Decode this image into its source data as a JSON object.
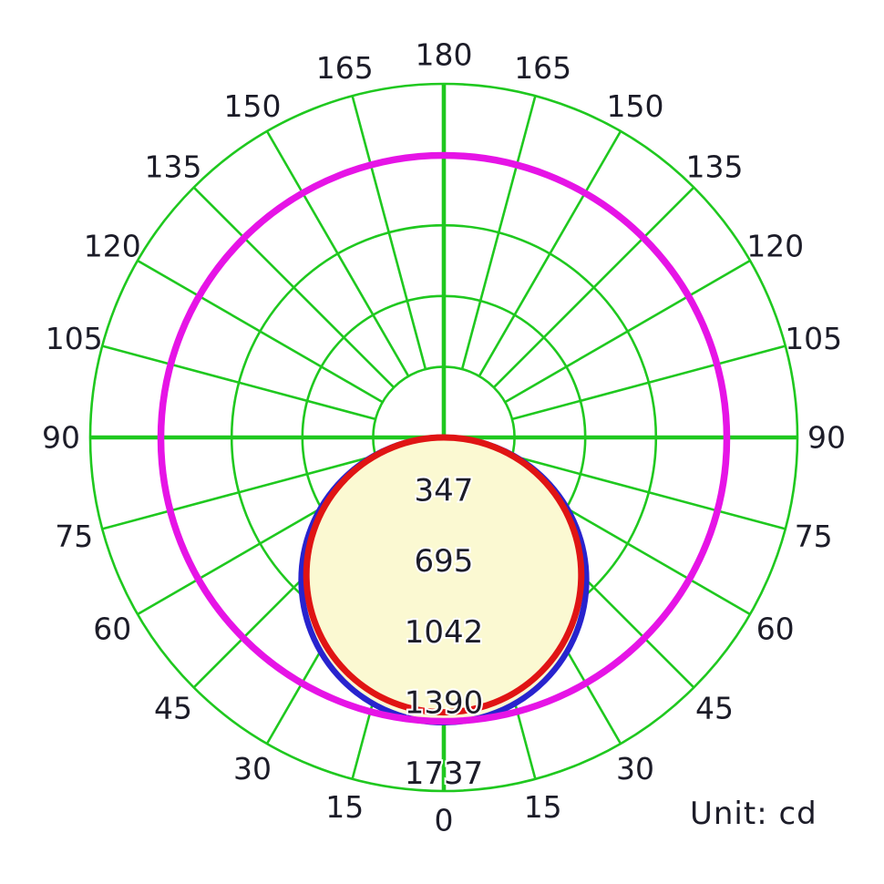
{
  "unit_label": "Unit: cd",
  "colors": {
    "background": "#ffffff",
    "grid_green": "#1fc81f",
    "axis_green": "#1fc81f",
    "red_curve": "#e01414",
    "blue_curve": "#2823ce",
    "magenta_circle": "#e614e6",
    "lobe_fill": "#fbf9d2",
    "text": "#1c1c28"
  },
  "chart_data": {
    "type": "line",
    "subtype": "polar-luminous-intensity-distribution",
    "unit": "cd",
    "grid": true,
    "legend": "none",
    "angle_ticks_deg": [
      0,
      15,
      30,
      45,
      60,
      75,
      90,
      105,
      120,
      135,
      150,
      165,
      180
    ],
    "angle_zero_position": "bottom",
    "ring_values_cd": [
      347,
      695,
      1042,
      1390,
      1737
    ],
    "rmax_cd": 1737,
    "series": [
      {
        "name": "blue-curve",
        "color_key": "blue_curve",
        "shape": "cosine-lobe",
        "peak_cd": 1400,
        "angles_deg": [
          0,
          15,
          30,
          45,
          60,
          75,
          90
        ],
        "values_cd": [
          1400,
          1352,
          1212,
          990,
          700,
          362,
          0
        ]
      },
      {
        "name": "red-curve",
        "color_key": "red_curve",
        "shape": "cosine-lobe",
        "peak_cd": 1350,
        "angles_deg": [
          0,
          15,
          30,
          45,
          60,
          75,
          90
        ],
        "values_cd": [
          1350,
          1304,
          1169,
          955,
          675,
          349,
          0
        ]
      },
      {
        "name": "magenta-circle",
        "color_key": "magenta_circle",
        "shape": "constant-circle",
        "constant_cd": 1390,
        "angles_deg": [
          0,
          90,
          180,
          270
        ],
        "values_cd": [
          1390,
          1390,
          1390,
          1390
        ]
      }
    ]
  }
}
